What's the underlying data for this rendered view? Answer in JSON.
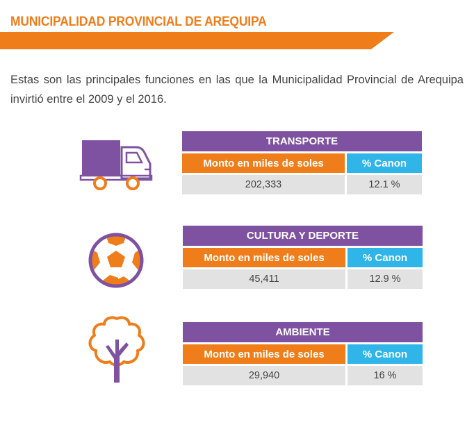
{
  "header": {
    "title": "MUNICIPALIDAD PROVINCIAL DE AREQUIPA"
  },
  "intro": "Estas son las principales funciones en las que la Municipalidad Provincial de Arequipa invirtió entre el 2009 y el 2016.",
  "colors": {
    "orange": "#ef7d1a",
    "purple": "#7e52a0",
    "blue": "#2fb5e8",
    "gray": "#e2e2e2"
  },
  "sections": [
    {
      "title": "TRANSPORTE",
      "icon": "truck-icon",
      "col1": "Monto en miles de soles",
      "col2": "% Canon",
      "amount": "202,333",
      "canon": "12.1 %"
    },
    {
      "title": "CULTURA Y DEPORTE",
      "icon": "soccer-ball-icon",
      "col1": "Monto en miles de soles",
      "col2": "% Canon",
      "amount": "45,411",
      "canon": "12.9 %"
    },
    {
      "title": "AMBIENTE",
      "icon": "tree-icon",
      "col1": "Monto en miles de soles",
      "col2": "% Canon",
      "amount": "29,940",
      "canon": "16 %"
    }
  ]
}
